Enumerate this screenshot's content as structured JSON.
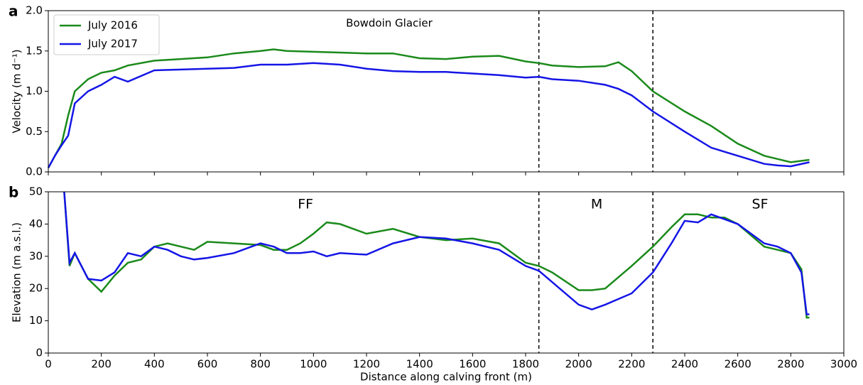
{
  "chart_data": [
    {
      "type": "line",
      "panel_label": "a",
      "title": "Bowdoin Glacier",
      "ylabel": "Velocity (m d⁻¹)",
      "x": [
        0,
        25,
        50,
        75,
        100,
        150,
        200,
        250,
        300,
        400,
        500,
        600,
        700,
        800,
        850,
        900,
        1000,
        1100,
        1200,
        1300,
        1400,
        1500,
        1600,
        1700,
        1800,
        1850,
        1900,
        2000,
        2100,
        2150,
        2200,
        2280,
        2400,
        2500,
        2600,
        2700,
        2750,
        2800,
        2870
      ],
      "series": [
        {
          "name": "July 2016",
          "color": "#1a8a1a",
          "values": [
            0.05,
            0.2,
            0.35,
            0.7,
            1.0,
            1.15,
            1.23,
            1.26,
            1.32,
            1.38,
            1.4,
            1.42,
            1.47,
            1.5,
            1.52,
            1.5,
            1.49,
            1.48,
            1.47,
            1.47,
            1.41,
            1.4,
            1.43,
            1.44,
            1.37,
            1.35,
            1.32,
            1.3,
            1.31,
            1.36,
            1.25,
            1.0,
            0.75,
            0.57,
            0.35,
            0.2,
            0.16,
            0.12,
            0.15
          ]
        },
        {
          "name": "July 2017",
          "color": "#1515e6",
          "values": [
            0.05,
            0.2,
            0.33,
            0.45,
            0.85,
            1.0,
            1.08,
            1.18,
            1.12,
            1.26,
            1.27,
            1.28,
            1.29,
            1.33,
            1.33,
            1.33,
            1.35,
            1.33,
            1.28,
            1.25,
            1.24,
            1.24,
            1.22,
            1.2,
            1.17,
            1.18,
            1.15,
            1.13,
            1.08,
            1.03,
            0.95,
            0.75,
            0.5,
            0.3,
            0.2,
            0.1,
            0.08,
            0.07,
            0.12
          ]
        }
      ],
      "xlim": [
        0,
        3000
      ],
      "xticks": [
        0,
        200,
        400,
        600,
        800,
        1000,
        1200,
        1400,
        1600,
        1800,
        2000,
        2200,
        2400,
        2600,
        2800,
        3000
      ],
      "ylim": [
        0,
        2
      ],
      "yticks": [
        {
          "value": 0,
          "label": "0.0"
        },
        {
          "value": 0.5,
          "label": "0.5"
        },
        {
          "value": 1,
          "label": "1.0"
        },
        {
          "value": 1.5,
          "label": "1.5"
        },
        {
          "value": 2,
          "label": "2.0"
        }
      ],
      "vlines": [
        1850,
        2280
      ],
      "legend": "upper left"
    },
    {
      "type": "line",
      "panel_label": "b",
      "xlabel": "Distance along calving front (m)",
      "ylabel": "Elevation (m a.s.l.)",
      "x": [
        60,
        80,
        100,
        150,
        200,
        250,
        300,
        350,
        400,
        450,
        500,
        550,
        600,
        700,
        800,
        850,
        900,
        950,
        1000,
        1050,
        1100,
        1200,
        1300,
        1400,
        1500,
        1600,
        1700,
        1800,
        1850,
        1900,
        2000,
        2050,
        2100,
        2200,
        2280,
        2350,
        2400,
        2450,
        2500,
        2550,
        2600,
        2700,
        2750,
        2800,
        2840,
        2860,
        2870
      ],
      "series": [
        {
          "name": "July 2016",
          "color": "#1a8a1a",
          "values": [
            50,
            27,
            31,
            23,
            19,
            24,
            28,
            29,
            33,
            34,
            33,
            32,
            34.5,
            34,
            33.5,
            32,
            32,
            34,
            37,
            40.5,
            40,
            37,
            38.5,
            36,
            35,
            35.5,
            34,
            28,
            27,
            25,
            19.5,
            19.5,
            20,
            27,
            33,
            39,
            43,
            43,
            42,
            42,
            40,
            33,
            32,
            31,
            26,
            11,
            11
          ]
        },
        {
          "name": "July 2017",
          "color": "#1515e6",
          "values": [
            50,
            28,
            31,
            23,
            22.5,
            25,
            31,
            30,
            33,
            32,
            30,
            29,
            29.5,
            31,
            34,
            33,
            31,
            31,
            31.5,
            30,
            31,
            30.5,
            34,
            36,
            35.5,
            34,
            32,
            27,
            25.5,
            22,
            15,
            13.5,
            15,
            18.5,
            25,
            34,
            41,
            40.5,
            43,
            41.5,
            40,
            34,
            33,
            31,
            25,
            12,
            12
          ]
        }
      ],
      "xlim": [
        0,
        3000
      ],
      "xticks": [
        0,
        200,
        400,
        600,
        800,
        1000,
        1200,
        1400,
        1600,
        1800,
        2000,
        2200,
        2400,
        2600,
        2800,
        3000
      ],
      "ylim": [
        0,
        50
      ],
      "yticks": [
        0,
        10,
        20,
        30,
        40,
        50
      ],
      "vlines": [
        1850,
        2280
      ],
      "annotations": [
        {
          "text": "FF",
          "x": 970,
          "y": 46
        },
        {
          "text": "M",
          "x": 2068,
          "y": 46
        },
        {
          "text": "SF",
          "x": 2684,
          "y": 46
        }
      ]
    }
  ]
}
